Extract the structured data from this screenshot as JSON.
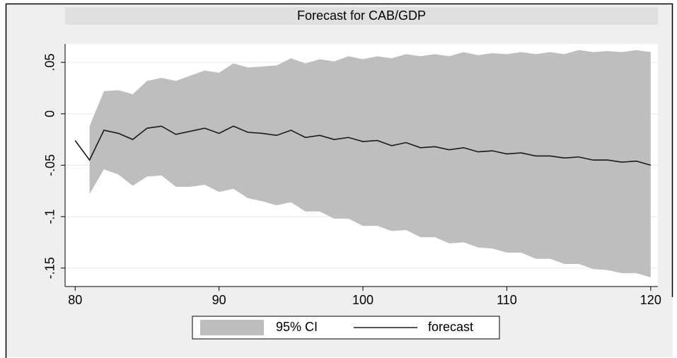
{
  "chart_data": {
    "type": "line",
    "title": "Forecast for CAB/GDP",
    "x": [
      80,
      81,
      82,
      83,
      84,
      85,
      86,
      87,
      88,
      89,
      90,
      91,
      92,
      93,
      94,
      95,
      96,
      97,
      98,
      99,
      100,
      101,
      102,
      103,
      104,
      105,
      106,
      107,
      108,
      109,
      110,
      111,
      112,
      113,
      114,
      115,
      116,
      117,
      118,
      119,
      120
    ],
    "series": [
      {
        "name": "95% CI",
        "color": "#bebebe",
        "kind": "band",
        "upper": [
          null,
          -0.012,
          0.022,
          0.023,
          0.019,
          0.032,
          0.035,
          0.032,
          0.037,
          0.042,
          0.04,
          0.049,
          0.045,
          0.046,
          0.047,
          0.054,
          0.049,
          0.053,
          0.051,
          0.056,
          0.053,
          0.056,
          0.054,
          0.058,
          0.056,
          0.058,
          0.056,
          0.06,
          0.057,
          0.059,
          0.058,
          0.06,
          0.058,
          0.06,
          0.058,
          0.062,
          0.06,
          0.061,
          0.06,
          0.062,
          0.06
        ],
        "lower": [
          null,
          -0.078,
          -0.054,
          -0.059,
          -0.07,
          -0.061,
          -0.06,
          -0.071,
          -0.071,
          -0.069,
          -0.076,
          -0.073,
          -0.082,
          -0.085,
          -0.089,
          -0.086,
          -0.095,
          -0.095,
          -0.102,
          -0.102,
          -0.109,
          -0.109,
          -0.114,
          -0.113,
          -0.12,
          -0.12,
          -0.126,
          -0.125,
          -0.13,
          -0.131,
          -0.135,
          -0.135,
          -0.141,
          -0.141,
          -0.146,
          -0.146,
          -0.151,
          -0.152,
          -0.155,
          -0.155,
          -0.159
        ]
      },
      {
        "name": "forecast",
        "color": "#1a1a1a",
        "kind": "line",
        "values": [
          -0.026,
          -0.045,
          -0.016,
          -0.019,
          -0.025,
          -0.014,
          -0.012,
          -0.02,
          -0.017,
          -0.014,
          -0.019,
          -0.012,
          -0.018,
          -0.019,
          -0.021,
          -0.016,
          -0.023,
          -0.021,
          -0.025,
          -0.023,
          -0.027,
          -0.026,
          -0.031,
          -0.028,
          -0.033,
          -0.032,
          -0.035,
          -0.033,
          -0.037,
          -0.036,
          -0.039,
          -0.038,
          -0.041,
          -0.041,
          -0.043,
          -0.042,
          -0.045,
          -0.045,
          -0.047,
          -0.046,
          -0.05
        ]
      }
    ],
    "xlim": [
      79.3,
      120.5
    ],
    "xticks": [
      80,
      90,
      100,
      110,
      120
    ],
    "ylim": [
      -0.168,
      0.068
    ],
    "yticks": [
      {
        "value": -0.15,
        "label": "-.15"
      },
      {
        "value": -0.1,
        "label": "-.1"
      },
      {
        "value": -0.05,
        "label": "-.05"
      },
      0,
      {
        "value": 0.05,
        "label": ".05"
      }
    ],
    "grid": true,
    "legend": "bottom"
  }
}
